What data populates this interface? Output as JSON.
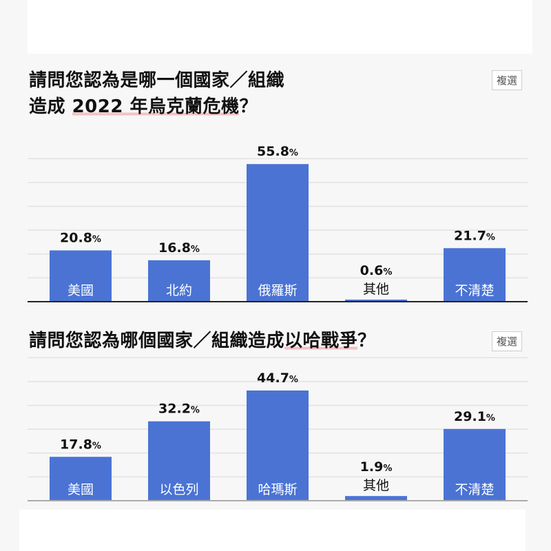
{
  "charts_meta": [
    {
      "title_before": "請問您認為是哪一個國家／組織",
      "title_line2_before": "造成 ",
      "title_highlight": "2022 年烏克蘭危機",
      "title_after": "？",
      "badge": "複選"
    },
    {
      "title_before": "請問您認為哪個國家／組織造成",
      "title_highlight": "以哈戰爭",
      "title_after": "？",
      "badge": "複選"
    }
  ],
  "chart_data": [
    {
      "type": "bar",
      "categories": [
        "美國",
        "北約",
        "俄羅斯",
        "其他",
        "不清楚"
      ],
      "values": [
        20.8,
        16.8,
        55.8,
        0.6,
        21.7
      ],
      "unit": "%",
      "grid": true,
      "bar_color": "#4a73d4"
    },
    {
      "type": "bar",
      "categories": [
        "美國",
        "以色列",
        "哈瑪斯",
        "其他",
        "不清楚"
      ],
      "values": [
        17.8,
        32.2,
        44.7,
        1.9,
        29.1
      ],
      "unit": "%",
      "grid": true,
      "bar_color": "#4a73d4"
    }
  ]
}
